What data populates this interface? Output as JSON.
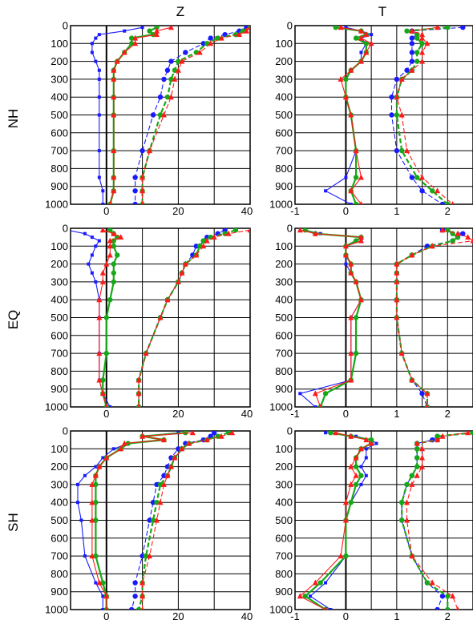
{
  "figure": {
    "columns": [
      "Z",
      "T"
    ],
    "rows": [
      "NH",
      "EQ",
      "SH"
    ]
  },
  "colors": {
    "blue": "#1a1aff",
    "green": "#17a817",
    "red": "#ff1a1a",
    "brown": "#8b4513"
  },
  "axes": {
    "y_ticks": [
      "0",
      "100",
      "200",
      "300",
      "400",
      "500",
      "600",
      "700",
      "800",
      "900",
      "1000"
    ],
    "z_ticks": [
      "0",
      "20",
      "40"
    ],
    "t_ticks": [
      "-1",
      "0",
      "1",
      "2"
    ]
  },
  "chart_data": [
    {
      "type": "line",
      "panel": "NH-Z",
      "y": [
        10,
        30,
        50,
        70,
        100,
        150,
        200,
        250,
        300,
        400,
        500,
        700,
        850,
        925,
        1000
      ],
      "xlim": [
        -10,
        40
      ],
      "ylim": [
        1000,
        0
      ],
      "series": [
        {
          "color": "blue",
          "style": "solid",
          "marker": "square",
          "values": [
            10,
            5,
            -2,
            -3,
            -4,
            -4,
            -3,
            -2,
            -2,
            -2,
            -2,
            -2,
            -2,
            -1,
            -1
          ]
        },
        {
          "color": "green",
          "style": "solid",
          "marker": "circle",
          "values": [
            14,
            12,
            13,
            7,
            7,
            5,
            3,
            2,
            2,
            2,
            2,
            2,
            2,
            2,
            1
          ]
        },
        {
          "color": "red",
          "style": "solid",
          "marker": "triangle",
          "values": [
            18,
            14,
            14,
            8,
            8,
            5,
            3,
            2,
            2,
            2,
            2,
            2,
            2,
            2,
            1
          ]
        },
        {
          "color": "blue",
          "style": "dashed",
          "marker": "circle",
          "values": [
            39,
            37,
            33,
            29,
            27,
            22,
            18,
            17,
            16,
            15,
            13,
            10,
            8,
            8,
            8
          ]
        },
        {
          "color": "green",
          "style": "dashed",
          "marker": "circle",
          "values": [
            40,
            38,
            36,
            31,
            28,
            25,
            20,
            19,
            18,
            17,
            15,
            12,
            10,
            10,
            10
          ]
        },
        {
          "color": "red",
          "style": "dashed",
          "marker": "triangle",
          "values": [
            40,
            39,
            37,
            32,
            29,
            26,
            21,
            20,
            19,
            18,
            16,
            12,
            10,
            10,
            10
          ]
        }
      ]
    },
    {
      "type": "line",
      "panel": "NH-T",
      "y": [
        10,
        30,
        50,
        70,
        100,
        150,
        200,
        250,
        300,
        400,
        500,
        700,
        850,
        925,
        1000
      ],
      "xlim": [
        -1,
        2.5
      ],
      "ylim": [
        1000,
        0
      ],
      "series": [
        {
          "color": "blue",
          "style": "solid",
          "marker": "square",
          "values": [
            0.0,
            0.3,
            0.5,
            0.3,
            0.4,
            0.3,
            0.3,
            0.1,
            0.0,
            0.0,
            0.1,
            0.2,
            0.0,
            -0.4,
            0.1
          ]
        },
        {
          "color": "green",
          "style": "solid",
          "marker": "circle",
          "values": [
            -0.2,
            0.3,
            0.4,
            0.2,
            0.4,
            0.4,
            0.3,
            0.1,
            0.0,
            0.0,
            0.1,
            0.2,
            0.2,
            0.1,
            0.2
          ]
        },
        {
          "color": "red",
          "style": "solid",
          "marker": "triangle",
          "values": [
            -0.1,
            0.3,
            0.4,
            0.3,
            0.5,
            0.4,
            0.3,
            0.1,
            -0.1,
            0.0,
            0.1,
            0.2,
            0.3,
            0.1,
            0.3
          ]
        },
        {
          "color": "blue",
          "style": "dashed",
          "marker": "circle",
          "values": [
            2.3,
            1.3,
            1.4,
            1.3,
            1.3,
            1.3,
            1.3,
            1.2,
            1.0,
            0.9,
            0.9,
            1.0,
            1.3,
            1.5,
            1.9
          ]
        },
        {
          "color": "green",
          "style": "dashed",
          "marker": "circle",
          "values": [
            2.0,
            1.2,
            1.4,
            1.4,
            1.5,
            1.4,
            1.4,
            1.3,
            1.1,
            1.0,
            1.0,
            1.1,
            1.4,
            1.7,
            2.0
          ]
        },
        {
          "color": "red",
          "style": "dashed",
          "marker": "triangle",
          "values": [
            1.8,
            1.3,
            1.5,
            1.5,
            1.6,
            1.5,
            1.5,
            1.3,
            1.1,
            1.0,
            1.1,
            1.2,
            1.5,
            1.8,
            2.1
          ]
        }
      ]
    },
    {
      "type": "line",
      "panel": "EQ-Z",
      "y": [
        10,
        30,
        50,
        70,
        100,
        150,
        200,
        250,
        300,
        400,
        500,
        700,
        850,
        925,
        1000
      ],
      "xlim": [
        -10,
        40
      ],
      "ylim": [
        1000,
        0
      ],
      "series": [
        {
          "color": "blue",
          "style": "solid",
          "marker": "square",
          "values": [
            -11,
            -6,
            -4,
            -2,
            -3,
            -4,
            -5,
            -4,
            -3,
            -2,
            -2,
            -2,
            -2,
            -1,
            1
          ]
        },
        {
          "color": "green",
          "style": "solid",
          "marker": "circle",
          "values": [
            1,
            2,
            3,
            2,
            2,
            3,
            2,
            2,
            2,
            1,
            0,
            0,
            -1,
            -1,
            0
          ]
        },
        {
          "color": "red",
          "style": "solid",
          "marker": "triangle",
          "values": [
            -1,
            2,
            4,
            1,
            1,
            1,
            0,
            -1,
            -1,
            -2,
            -2,
            -2,
            -2,
            -1,
            0
          ]
        },
        {
          "color": "blue",
          "style": "dashed",
          "marker": "circle",
          "values": [
            33,
            31,
            28,
            27,
            25,
            24,
            22,
            21,
            20,
            17,
            15,
            11,
            9,
            9,
            9
          ]
        },
        {
          "color": "green",
          "style": "dashed",
          "marker": "circle",
          "values": [
            36,
            33,
            29,
            27,
            26,
            25,
            22,
            21,
            20,
            17,
            15,
            11,
            9,
            9,
            9
          ]
        },
        {
          "color": "red",
          "style": "dashed",
          "marker": "triangle",
          "values": [
            40,
            34,
            30,
            28,
            27,
            25,
            22,
            21,
            20,
            17,
            15,
            11,
            9,
            9,
            9
          ]
        }
      ]
    },
    {
      "type": "line",
      "panel": "EQ-T",
      "y": [
        10,
        30,
        50,
        70,
        100,
        150,
        200,
        250,
        300,
        400,
        500,
        700,
        850,
        925,
        1000
      ],
      "xlim": [
        -1,
        2.5
      ],
      "ylim": [
        1000,
        0
      ],
      "series": [
        {
          "color": "blue",
          "style": "solid",
          "marker": "square",
          "values": [
            -0.8,
            -0.5,
            0.3,
            0.3,
            0.0,
            0.0,
            0.0,
            0.1,
            0.2,
            0.3,
            0.1,
            0.1,
            0.1,
            -0.9,
            -0.6
          ]
        },
        {
          "color": "green",
          "style": "solid",
          "marker": "circle",
          "values": [
            -0.8,
            -0.6,
            0.3,
            0.2,
            0.0,
            0.0,
            0.1,
            0.1,
            0.2,
            0.3,
            0.2,
            0.2,
            0.1,
            -0.4,
            -0.5
          ]
        },
        {
          "color": "red",
          "style": "solid",
          "marker": "triangle",
          "values": [
            -0.9,
            -0.6,
            0.3,
            0.3,
            0.0,
            0.0,
            0.1,
            0.1,
            0.2,
            0.3,
            0.1,
            0.1,
            0.1,
            -0.6,
            -0.5
          ]
        },
        {
          "color": "blue",
          "style": "dashed",
          "marker": "circle",
          "values": [
            1.9,
            2.3,
            2.2,
            2.1,
            1.6,
            1.3,
            1.0,
            1.0,
            1.0,
            1.0,
            1.0,
            1.1,
            1.3,
            1.5,
            1.6
          ]
        },
        {
          "color": "green",
          "style": "dashed",
          "marker": "circle",
          "values": [
            2.0,
            2.1,
            2.2,
            2.1,
            1.7,
            1.3,
            1.0,
            1.0,
            1.0,
            1.0,
            1.0,
            1.1,
            1.3,
            1.6,
            1.6
          ]
        },
        {
          "color": "red",
          "style": "dashed",
          "marker": "triangle",
          "values": [
            1.9,
            2.2,
            2.4,
            2.5,
            1.7,
            1.3,
            1.0,
            1.0,
            1.0,
            1.0,
            1.0,
            1.1,
            1.3,
            1.6,
            1.6
          ]
        }
      ]
    },
    {
      "type": "line",
      "panel": "SH-Z",
      "y": [
        10,
        30,
        50,
        70,
        100,
        150,
        200,
        250,
        300,
        400,
        500,
        700,
        850,
        925,
        1000
      ],
      "xlim": [
        -10,
        40
      ],
      "ylim": [
        1000,
        0
      ],
      "series": [
        {
          "color": "blue",
          "style": "solid",
          "marker": "square",
          "values": [
            20,
            10,
            16,
            6,
            2,
            -1,
            -3,
            -6,
            -8,
            -8,
            -7,
            -6,
            -3,
            -1,
            -1
          ]
        },
        {
          "color": "green",
          "style": "solid",
          "marker": "circle",
          "values": [
            22,
            10,
            16,
            6,
            4,
            0,
            -2,
            -3,
            -3,
            -3,
            -3,
            -3,
            -1,
            0,
            0
          ]
        },
        {
          "color": "red",
          "style": "solid",
          "marker": "triangle",
          "values": [
            24,
            10,
            16,
            5,
            4,
            0,
            -2,
            -3,
            -4,
            -4,
            -4,
            -4,
            -2,
            0,
            0
          ]
        },
        {
          "color": "blue",
          "style": "dashed",
          "marker": "circle",
          "values": [
            30,
            29,
            27,
            22,
            20,
            18,
            17,
            16,
            14,
            13,
            12,
            10,
            8,
            8,
            7
          ]
        },
        {
          "color": "green",
          "style": "dashed",
          "marker": "circle",
          "values": [
            34,
            31,
            28,
            23,
            21,
            19,
            18,
            17,
            15,
            14,
            13,
            11,
            10,
            10,
            9
          ]
        },
        {
          "color": "red",
          "style": "dashed",
          "marker": "triangle",
          "values": [
            35,
            32,
            28,
            23,
            21,
            19,
            18,
            17,
            16,
            15,
            14,
            12,
            10,
            10,
            10
          ]
        }
      ]
    },
    {
      "type": "line",
      "panel": "SH-T",
      "y": [
        10,
        30,
        50,
        70,
        100,
        150,
        200,
        250,
        300,
        400,
        500,
        700,
        850,
        925,
        1000
      ],
      "xlim": [
        -1,
        2.5
      ],
      "ylim": [
        1000,
        0
      ],
      "series": [
        {
          "color": "blue",
          "style": "solid",
          "marker": "square",
          "values": [
            -0.4,
            0.2,
            0.5,
            0.6,
            0.4,
            0.4,
            0.3,
            0.4,
            0.3,
            0.1,
            0.0,
            0.0,
            -0.4,
            -0.7,
            -0.3
          ]
        },
        {
          "color": "green",
          "style": "solid",
          "marker": "circle",
          "values": [
            -0.3,
            0.1,
            0.5,
            0.5,
            0.3,
            0.2,
            0.2,
            0.3,
            0.2,
            0.1,
            0.0,
            0.0,
            -0.5,
            -0.8,
            -0.4
          ]
        },
        {
          "color": "red",
          "style": "solid",
          "marker": "triangle",
          "values": [
            -0.2,
            0.1,
            0.4,
            0.5,
            0.3,
            0.2,
            0.1,
            0.2,
            0.1,
            0.0,
            0.0,
            -0.1,
            -0.6,
            -0.9,
            -0.4
          ]
        },
        {
          "color": "blue",
          "style": "dashed",
          "marker": "circle",
          "values": [
            2.5,
            1.8,
            1.7,
            1.4,
            1.4,
            1.4,
            1.4,
            1.3,
            1.2,
            1.1,
            1.1,
            1.3,
            1.6,
            1.9,
            1.8
          ]
        },
        {
          "color": "green",
          "style": "dashed",
          "marker": "circle",
          "values": [
            2.5,
            1.8,
            1.8,
            1.4,
            1.4,
            1.4,
            1.4,
            1.3,
            1.2,
            1.1,
            1.1,
            1.3,
            1.6,
            2.0,
            2.0
          ]
        },
        {
          "color": "red",
          "style": "dashed",
          "marker": "triangle",
          "values": [
            2.4,
            1.9,
            1.8,
            1.4,
            1.5,
            1.5,
            1.5,
            1.4,
            1.3,
            1.2,
            1.2,
            1.3,
            1.7,
            2.1,
            2.2
          ]
        }
      ]
    }
  ]
}
